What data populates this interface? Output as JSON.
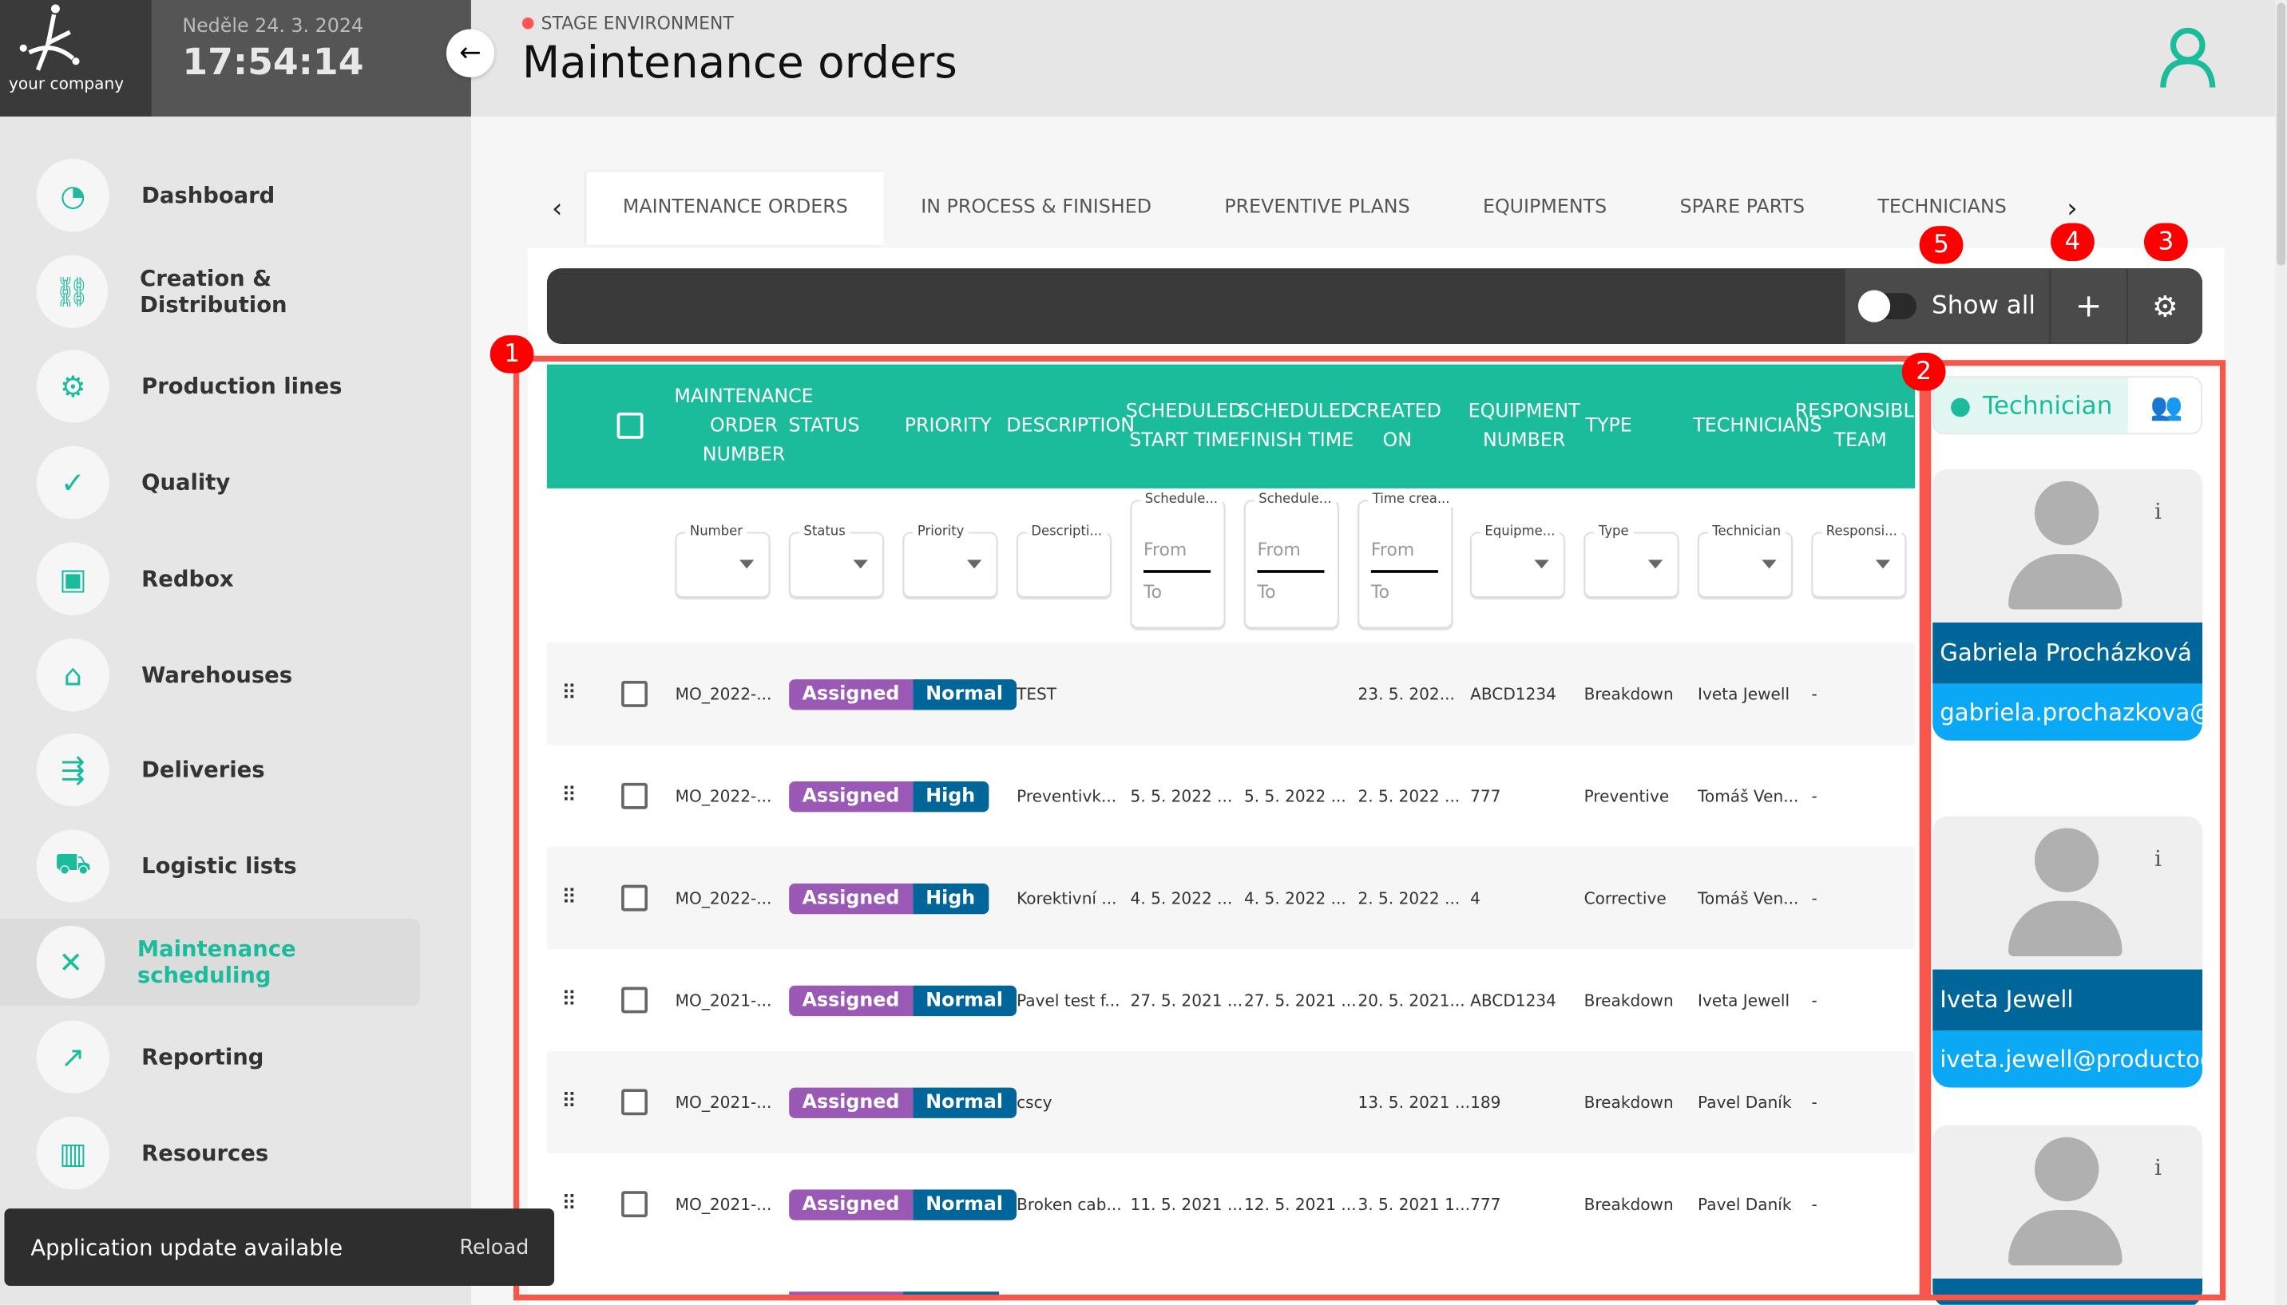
{
  "brand": {
    "logo_text": "your company"
  },
  "clock": {
    "date": "Neděle 24. 3. 2024",
    "time": "17:54:14"
  },
  "header": {
    "environment": "STAGE ENVIRONMENT",
    "title": "Maintenance orders"
  },
  "sidebar": {
    "items": [
      {
        "label": "Dashboard",
        "icon": "◔"
      },
      {
        "label": "Creation & Distribution",
        "icon": "⛓"
      },
      {
        "label": "Production lines",
        "icon": "⚙"
      },
      {
        "label": "Quality",
        "icon": "✓"
      },
      {
        "label": "Redbox",
        "icon": "▣"
      },
      {
        "label": "Warehouses",
        "icon": "⌂"
      },
      {
        "label": "Deliveries",
        "icon": "⇶"
      },
      {
        "label": "Logistic lists",
        "icon": "⛟"
      },
      {
        "label": "Maintenance scheduling",
        "icon": "✕",
        "active": true
      },
      {
        "label": "Reporting",
        "icon": "↗"
      },
      {
        "label": "Resources",
        "icon": "▥"
      }
    ]
  },
  "tabs": [
    "MAINTENANCE ORDERS",
    "IN PROCESS & FINISHED",
    "PREVENTIVE PLANS",
    "EQUIPMENTS",
    "SPARE PARTS",
    "TECHNICIANS"
  ],
  "toolbar": {
    "show_all": "Show all",
    "show_all_on": false,
    "add": "+",
    "settings": "⚙"
  },
  "annotations": [
    "1",
    "2",
    "3",
    "4",
    "5"
  ],
  "table": {
    "columns": [
      "MAINTENANCE ORDER NUMBER",
      "STATUS",
      "PRIORITY",
      "DESCRIPTION",
      "SCHEDULED START TIME",
      "SCHEDULED FINISH TIME",
      "CREATED ON",
      "EQUIPMENT NUMBER",
      "TYPE",
      "TECHNICIANS",
      "RESPONSIBLE TEAM"
    ],
    "filters": {
      "number": "Number",
      "status": "Status",
      "priority": "Priority",
      "description": "Descripti...",
      "sst": "Schedule...",
      "sft": "Schedule...",
      "created": "Time crea...",
      "equipment": "Equipme...",
      "type": "Type",
      "technician": "Technician",
      "responsible": "Responsi...",
      "from": "From",
      "to": "To"
    },
    "rows": [
      [
        "MO_2022-...",
        "Assigned",
        "Normal",
        "TEST",
        "",
        "",
        "23. 5. 202...",
        "ABCD1234",
        "Breakdown",
        "Iveta Jewell",
        "-"
      ],
      [
        "MO_2022-...",
        "Assigned",
        "High",
        "Preventivk...",
        "5. 5. 2022 ...",
        "5. 5. 2022 ...",
        "2. 5. 2022 ...",
        "777",
        "Preventive",
        "Tomáš Ven...",
        "-"
      ],
      [
        "MO_2022-...",
        "Assigned",
        "High",
        "Korektivní ...",
        "4. 5. 2022 ...",
        "4. 5. 2022 ...",
        "2. 5. 2022 ...",
        "4",
        "Corrective",
        "Tomáš Ven...",
        "-"
      ],
      [
        "MO_2021-...",
        "Assigned",
        "Normal",
        "Pavel test f...",
        "27. 5. 2021 ...",
        "27. 5. 2021 ...",
        "20. 5. 2021...",
        "ABCD1234",
        "Breakdown",
        "Iveta Jewell",
        "-"
      ],
      [
        "MO_2021-...",
        "Assigned",
        "Normal",
        "cscy",
        "",
        "",
        "13. 5. 2021 ...",
        "189",
        "Breakdown",
        "Pavel Daník",
        "-"
      ],
      [
        "MO_2021-...",
        "Assigned",
        "Normal",
        "Broken cab...",
        "11. 5. 2021 ...",
        "12. 5. 2021 ...",
        "3. 5. 2021 1...",
        "777",
        "Breakdown",
        "Pavel Daník",
        "-"
      ]
    ]
  },
  "right_panel": {
    "toggle_label": "Technician",
    "technicians": [
      {
        "name": "Gabriela Procházková",
        "email": "gabriela.prochazkova@"
      },
      {
        "name": "Iveta Jewell",
        "email": "iveta.jewell@productoo"
      },
      {
        "name": "",
        "email": ""
      }
    ]
  },
  "toast": {
    "message": "Application update available",
    "action": "Reload"
  },
  "colors": {
    "accent": "#1abc9c",
    "status_assigned": "#9b59b6",
    "priority": "#006699",
    "email": "#0aa8f5",
    "annotation": "#f5584a"
  }
}
